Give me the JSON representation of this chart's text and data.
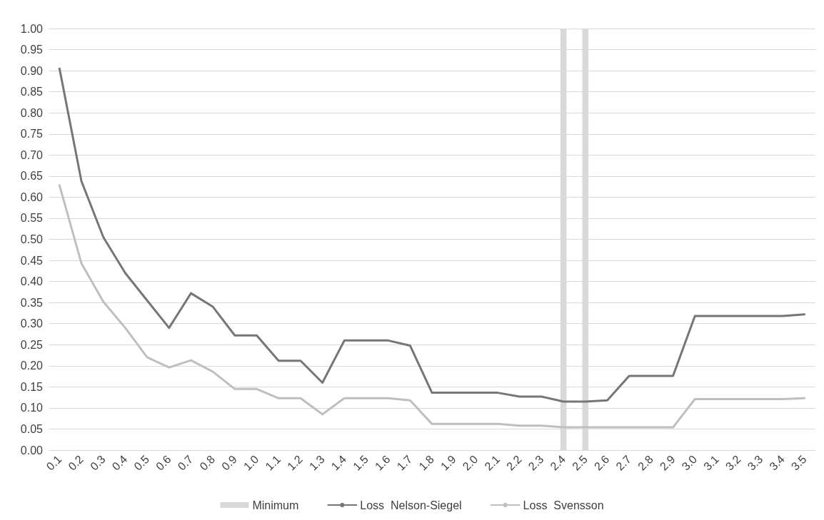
{
  "chart_data": {
    "type": "line",
    "categories": [
      "0.1",
      "0.2",
      "0.3",
      "0.4",
      "0.5",
      "0.6",
      "0.7",
      "0.8",
      "0.9",
      "1.0",
      "1.1",
      "1.2",
      "1.3",
      "1.4",
      "1.5",
      "1.6",
      "1.7",
      "1.8",
      "1.9",
      "2.0",
      "2.1",
      "2.2",
      "2.3",
      "2.4",
      "2.5",
      "2.6",
      "2.7",
      "2.8",
      "2.9",
      "3.0",
      "3.1",
      "3.2",
      "3.3",
      "3.4",
      "3.5"
    ],
    "series": [
      {
        "name": "Minimum",
        "type": "bar",
        "color": "#d9d9d9",
        "values": [
          null,
          null,
          null,
          null,
          null,
          null,
          null,
          null,
          null,
          null,
          null,
          null,
          null,
          null,
          null,
          null,
          null,
          null,
          null,
          null,
          null,
          null,
          null,
          1,
          1,
          null,
          null,
          null,
          null,
          null,
          null,
          null,
          null,
          null,
          null
        ]
      },
      {
        "name": "Loss  Nelson-Siegel",
        "color": "#767676",
        "values": [
          0.905,
          0.638,
          0.505,
          0.42,
          0.355,
          0.29,
          0.372,
          0.34,
          0.272,
          0.272,
          0.212,
          0.212,
          0.16,
          0.26,
          0.26,
          0.26,
          0.248,
          0.136,
          0.136,
          0.136,
          0.136,
          0.127,
          0.127,
          0.115,
          0.115,
          0.118,
          0.176,
          0.176,
          0.176,
          0.318,
          0.318,
          0.318,
          0.318,
          0.318,
          0.322
        ]
      },
      {
        "name": "Loss  Svensson",
        "color": "#bfbfbf",
        "values": [
          0.628,
          0.443,
          0.352,
          0.29,
          0.22,
          0.196,
          0.213,
          0.186,
          0.145,
          0.145,
          0.123,
          0.123,
          0.085,
          0.123,
          0.123,
          0.123,
          0.118,
          0.062,
          0.062,
          0.062,
          0.062,
          0.058,
          0.058,
          0.054,
          0.054,
          0.054,
          0.054,
          0.054,
          0.054,
          0.121,
          0.121,
          0.121,
          0.121,
          0.121,
          0.123
        ]
      }
    ],
    "ylim": [
      0,
      1
    ],
    "yticks": [
      {
        "value": 0,
        "label": "0.00"
      },
      {
        "value": 0.05,
        "label": "0.05"
      },
      {
        "value": 0.1,
        "label": "0.10"
      },
      {
        "value": 0.15,
        "label": "0.15"
      },
      {
        "value": 0.2,
        "label": "0.20"
      },
      {
        "value": 0.25,
        "label": "0.25"
      },
      {
        "value": 0.3,
        "label": "0.30"
      },
      {
        "value": 0.35,
        "label": "0.35"
      },
      {
        "value": 0.4,
        "label": "0.40"
      },
      {
        "value": 0.45,
        "label": "0.45"
      },
      {
        "value": 0.5,
        "label": "0.50"
      },
      {
        "value": 0.55,
        "label": "0.55"
      },
      {
        "value": 0.6,
        "label": "0.60"
      },
      {
        "value": 0.65,
        "label": "0.65"
      },
      {
        "value": 0.7,
        "label": "0.70"
      },
      {
        "value": 0.75,
        "label": "0.75"
      },
      {
        "value": 0.8,
        "label": "0.80"
      },
      {
        "value": 0.85,
        "label": "0.85"
      },
      {
        "value": 0.9,
        "label": "0.90"
      },
      {
        "value": 0.95,
        "label": "0.95"
      },
      {
        "value": 1,
        "label": "1.00"
      }
    ],
    "grid": "y",
    "legend": "bottom",
    "marker": "none",
    "line_style": "solid"
  }
}
